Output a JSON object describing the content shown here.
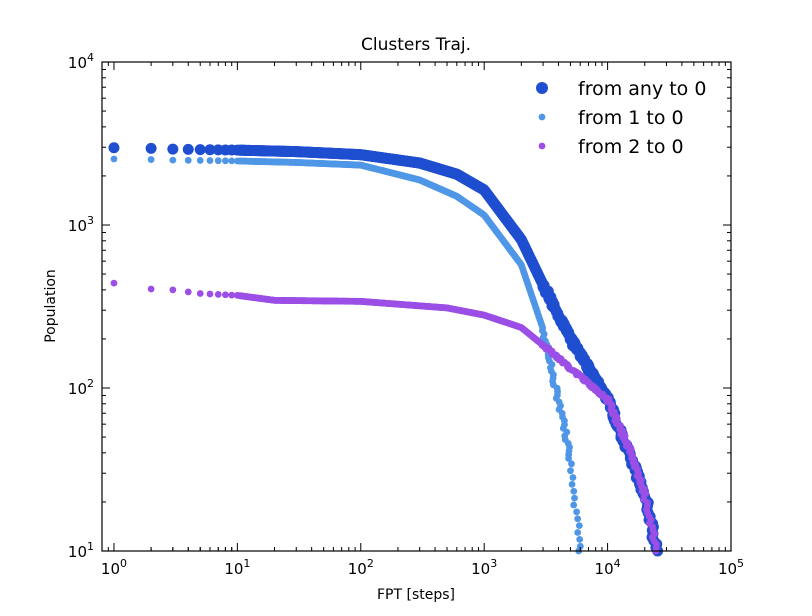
{
  "chart_data": {
    "type": "scatter",
    "title": "Clusters Traj.",
    "xlabel": "FPT [steps]",
    "ylabel": "Population",
    "xscale": "log",
    "yscale": "log",
    "xlim": [
      0.8,
      100000
    ],
    "ylim": [
      10,
      10000
    ],
    "x_ticks": [
      {
        "base": "10",
        "exp": "0",
        "value": 1
      },
      {
        "base": "10",
        "exp": "1",
        "value": 10
      },
      {
        "base": "10",
        "exp": "2",
        "value": 100
      },
      {
        "base": "10",
        "exp": "3",
        "value": 1000
      },
      {
        "base": "10",
        "exp": "4",
        "value": 10000
      },
      {
        "base": "10",
        "exp": "5",
        "value": 100000
      }
    ],
    "y_ticks": [
      {
        "base": "10",
        "exp": "1",
        "value": 10
      },
      {
        "base": "10",
        "exp": "2",
        "value": 100
      },
      {
        "base": "10",
        "exp": "3",
        "value": 1000
      },
      {
        "base": "10",
        "exp": "4",
        "value": 10000
      }
    ],
    "grid": false,
    "legend_position": "top-right",
    "series": [
      {
        "name": "from any to 0",
        "color": "#1f4ed0",
        "marker_size": "large",
        "x": [
          1,
          2,
          3,
          5,
          10,
          30,
          100,
          300,
          600,
          1000,
          2000,
          3000,
          5000,
          10000,
          15000,
          20000,
          25000
        ],
        "y": [
          2980,
          2950,
          2920,
          2900,
          2880,
          2820,
          2700,
          2400,
          2050,
          1640,
          813,
          430,
          200,
          85,
          39,
          22,
          10
        ]
      },
      {
        "name": "from 1 to 0",
        "color": "#4f97e6",
        "marker_size": "small",
        "x": [
          1,
          2,
          3,
          5,
          10,
          30,
          100,
          300,
          600,
          1000,
          2000,
          3000,
          4000,
          5000,
          6000
        ],
        "y": [
          2540,
          2520,
          2500,
          2490,
          2470,
          2420,
          2330,
          1890,
          1500,
          1150,
          570,
          230,
          85,
          36,
          10
        ]
      },
      {
        "name": "from 2 to 0",
        "color": "#9b4fe6",
        "marker_size": "small",
        "x": [
          1,
          2,
          3,
          5,
          10,
          20,
          100,
          500,
          1000,
          2000,
          3000,
          5000,
          10000,
          15000,
          20000,
          25000
        ],
        "y": [
          440,
          405,
          400,
          380,
          370,
          345,
          340,
          310,
          280,
          235,
          183,
          132,
          85,
          42,
          22,
          10
        ]
      }
    ]
  }
}
